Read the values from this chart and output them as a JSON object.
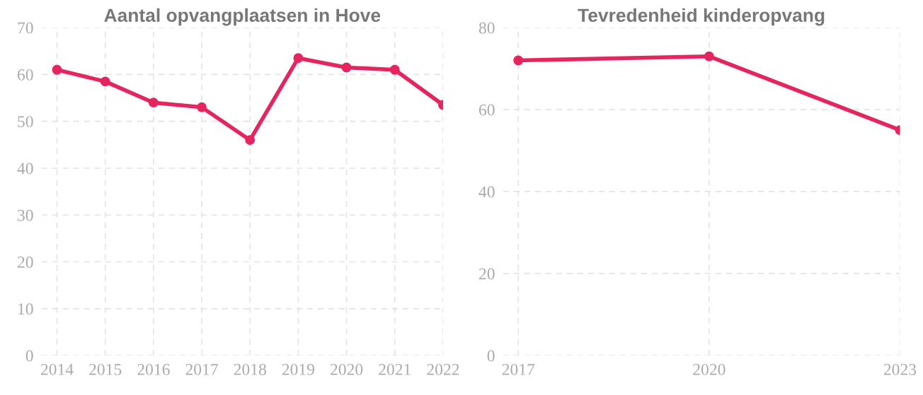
{
  "chart_data": [
    {
      "type": "line",
      "title": "Aantal opvangplaatsen in Hove",
      "categories": [
        "2014",
        "2015",
        "2016",
        "2017",
        "2018",
        "2019",
        "2020",
        "2021",
        "2022"
      ],
      "series": [
        {
          "color": "#e8245f",
          "values": [
            61,
            58.5,
            54,
            53,
            46,
            63.5,
            61.5,
            61,
            53.5
          ]
        }
      ],
      "ylim": [
        0,
        70
      ],
      "yticks": [
        0,
        10,
        20,
        30,
        40,
        50,
        60,
        70
      ],
      "grid": true,
      "marker": "circle",
      "line_style": "solid"
    },
    {
      "type": "line",
      "title": "Tevredenheid kinderopvang",
      "categories": [
        "2017",
        "2020",
        "2023"
      ],
      "series": [
        {
          "color": "#e8245f",
          "values": [
            72,
            73,
            55
          ]
        }
      ],
      "ylim": [
        0,
        80
      ],
      "yticks": [
        0,
        20,
        40,
        60,
        80
      ],
      "grid": true,
      "marker": "circle",
      "line_style": "solid"
    }
  ]
}
